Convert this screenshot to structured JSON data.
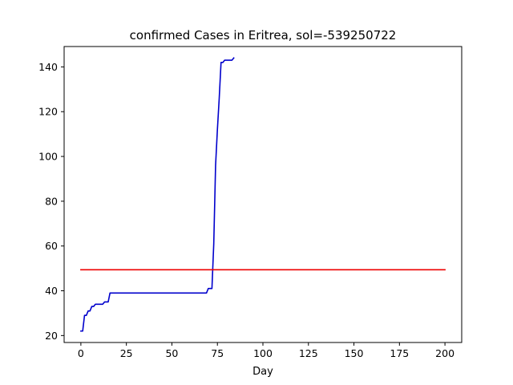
{
  "chart_data": {
    "type": "line",
    "title": "confirmed Cases in Eritrea, sol=-539250722",
    "xlabel": "Day",
    "ylabel": "",
    "xlim": [
      -9.2,
      209.2
    ],
    "ylim": [
      16.9,
      149.1
    ],
    "xticks": [
      0,
      25,
      50,
      75,
      100,
      125,
      150,
      175,
      200
    ],
    "yticks": [
      20,
      40,
      60,
      80,
      100,
      120,
      140
    ],
    "grid": false,
    "series": [
      {
        "color": "#0000cc",
        "x": [
          0,
          1,
          2,
          3,
          4,
          5,
          6,
          7,
          8,
          9,
          10,
          11,
          12,
          13,
          14,
          15,
          16,
          17,
          18,
          20,
          30,
          40,
          50,
          60,
          69,
          70,
          71,
          72,
          73,
          74,
          75,
          76,
          77,
          78,
          79,
          80,
          81,
          82,
          83,
          84
        ],
        "y": [
          22,
          22,
          29,
          29,
          31,
          31,
          33,
          33,
          34,
          34,
          34,
          34,
          34,
          35,
          35,
          35,
          39,
          39,
          39,
          39,
          39,
          39,
          39,
          39,
          39,
          41,
          41,
          41,
          61,
          96,
          112,
          126,
          142,
          142,
          143,
          143,
          143,
          143,
          143,
          144
        ]
      },
      {
        "color": "#ee0000",
        "x": [
          0,
          200
        ],
        "y": [
          49.4,
          49.4
        ]
      }
    ]
  }
}
